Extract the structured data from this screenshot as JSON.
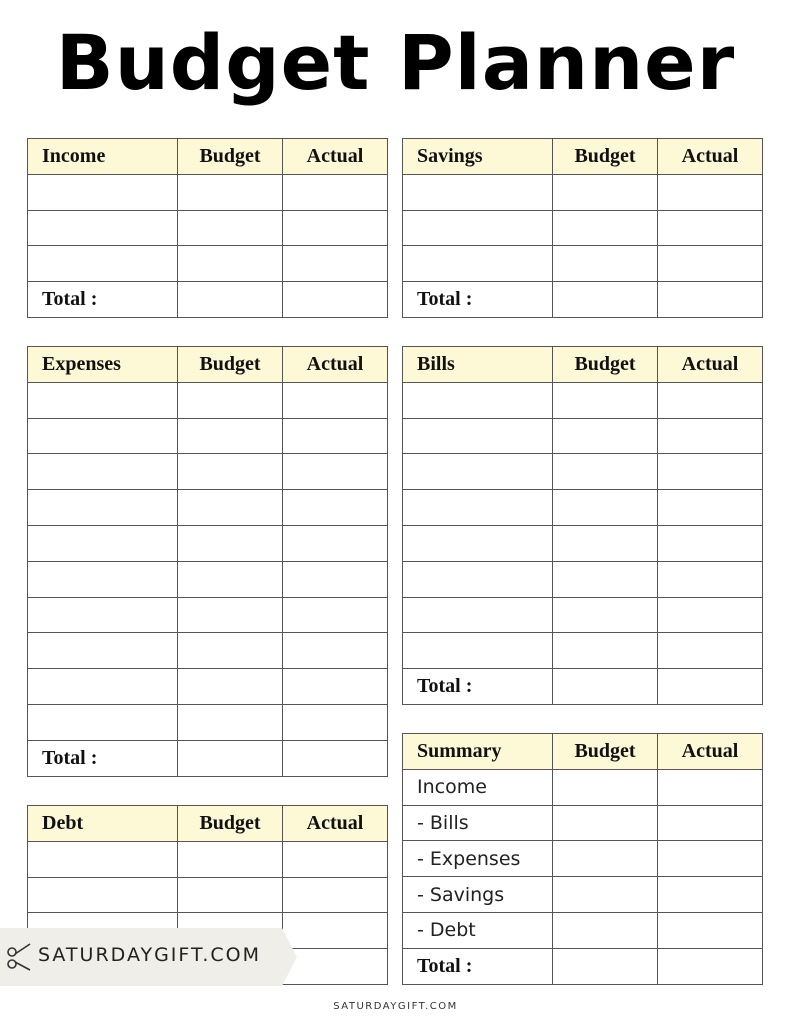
{
  "title": "Budget Planner",
  "sections": [
    {
      "name": "Income",
      "budget": "Budget",
      "actual": "Actual",
      "total": "Total :"
    },
    {
      "name": "Savings",
      "budget": "Budget",
      "actual": "Actual",
      "total": "Total :"
    },
    {
      "name": "Expenses",
      "budget": "Budget",
      "actual": "Actual",
      "total": "Total :"
    },
    {
      "name": "Bills",
      "budget": "Budget",
      "actual": "Actual",
      "total": "Total :"
    },
    {
      "name": "Debt",
      "budget": "Budget",
      "actual": "Actual"
    }
  ],
  "summary": {
    "name": "Summary",
    "budget": "Budget",
    "actual": "Actual",
    "rows": [
      "Income",
      "- Bills",
      "- Expenses",
      "- Savings",
      "- Debt"
    ],
    "total": "Total :"
  },
  "badge": "SATURDAYGIFT.COM",
  "footer": "SATURDAYGIFT.COM"
}
